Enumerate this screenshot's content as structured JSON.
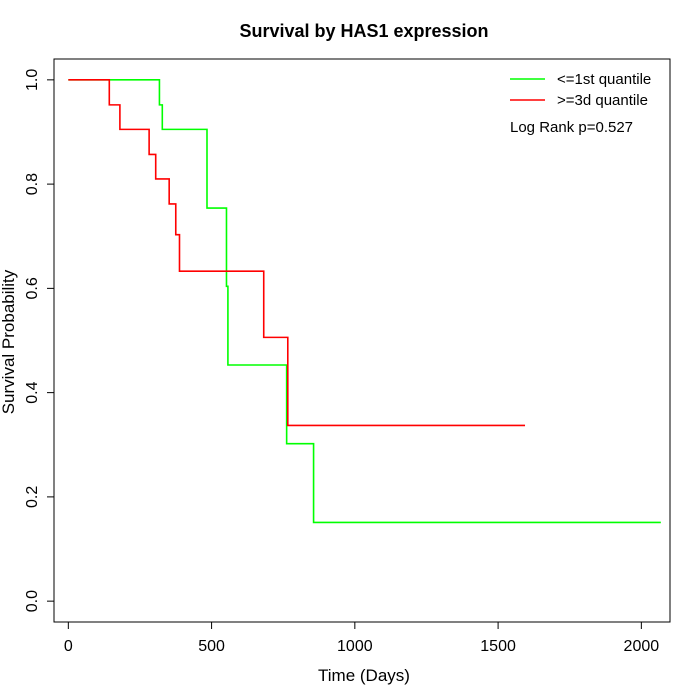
{
  "chart_data": {
    "type": "line",
    "title": "Survival by HAS1 expression",
    "xlabel": "Time (Days)",
    "ylabel": "Survival Probability",
    "xlim": [
      -50,
      2100
    ],
    "ylim": [
      -0.04,
      1.04
    ],
    "x_ticks": [
      0,
      500,
      1000,
      1500,
      2000
    ],
    "y_ticks": [
      0.0,
      0.2,
      0.4,
      0.6,
      0.8,
      1.0
    ],
    "x_tick_labels": [
      "0",
      "500",
      "1000",
      "1500",
      "2000"
    ],
    "y_tick_labels": [
      "0.0",
      "0.2",
      "0.4",
      "0.6",
      "0.8",
      "1.0"
    ],
    "annotation": "Log Rank p=0.527",
    "legend_position": "top-right",
    "series": [
      {
        "name": "<=1st quantile",
        "color": "#00ff00",
        "step_x": [
          0,
          318,
          328,
          484,
          552,
          557,
          762,
          856,
          2068
        ],
        "step_y": [
          1.0,
          0.952,
          0.905,
          0.754,
          0.604,
          0.453,
          0.302,
          0.151,
          0.151
        ]
      },
      {
        "name": ">=3d quantile",
        "color": "#ff0000",
        "step_x": [
          0,
          143,
          180,
          282,
          305,
          352,
          375,
          388,
          682,
          766,
          1594
        ],
        "step_y": [
          1.0,
          0.952,
          0.905,
          0.857,
          0.81,
          0.762,
          0.703,
          0.633,
          0.506,
          0.337,
          0.337
        ]
      }
    ]
  }
}
